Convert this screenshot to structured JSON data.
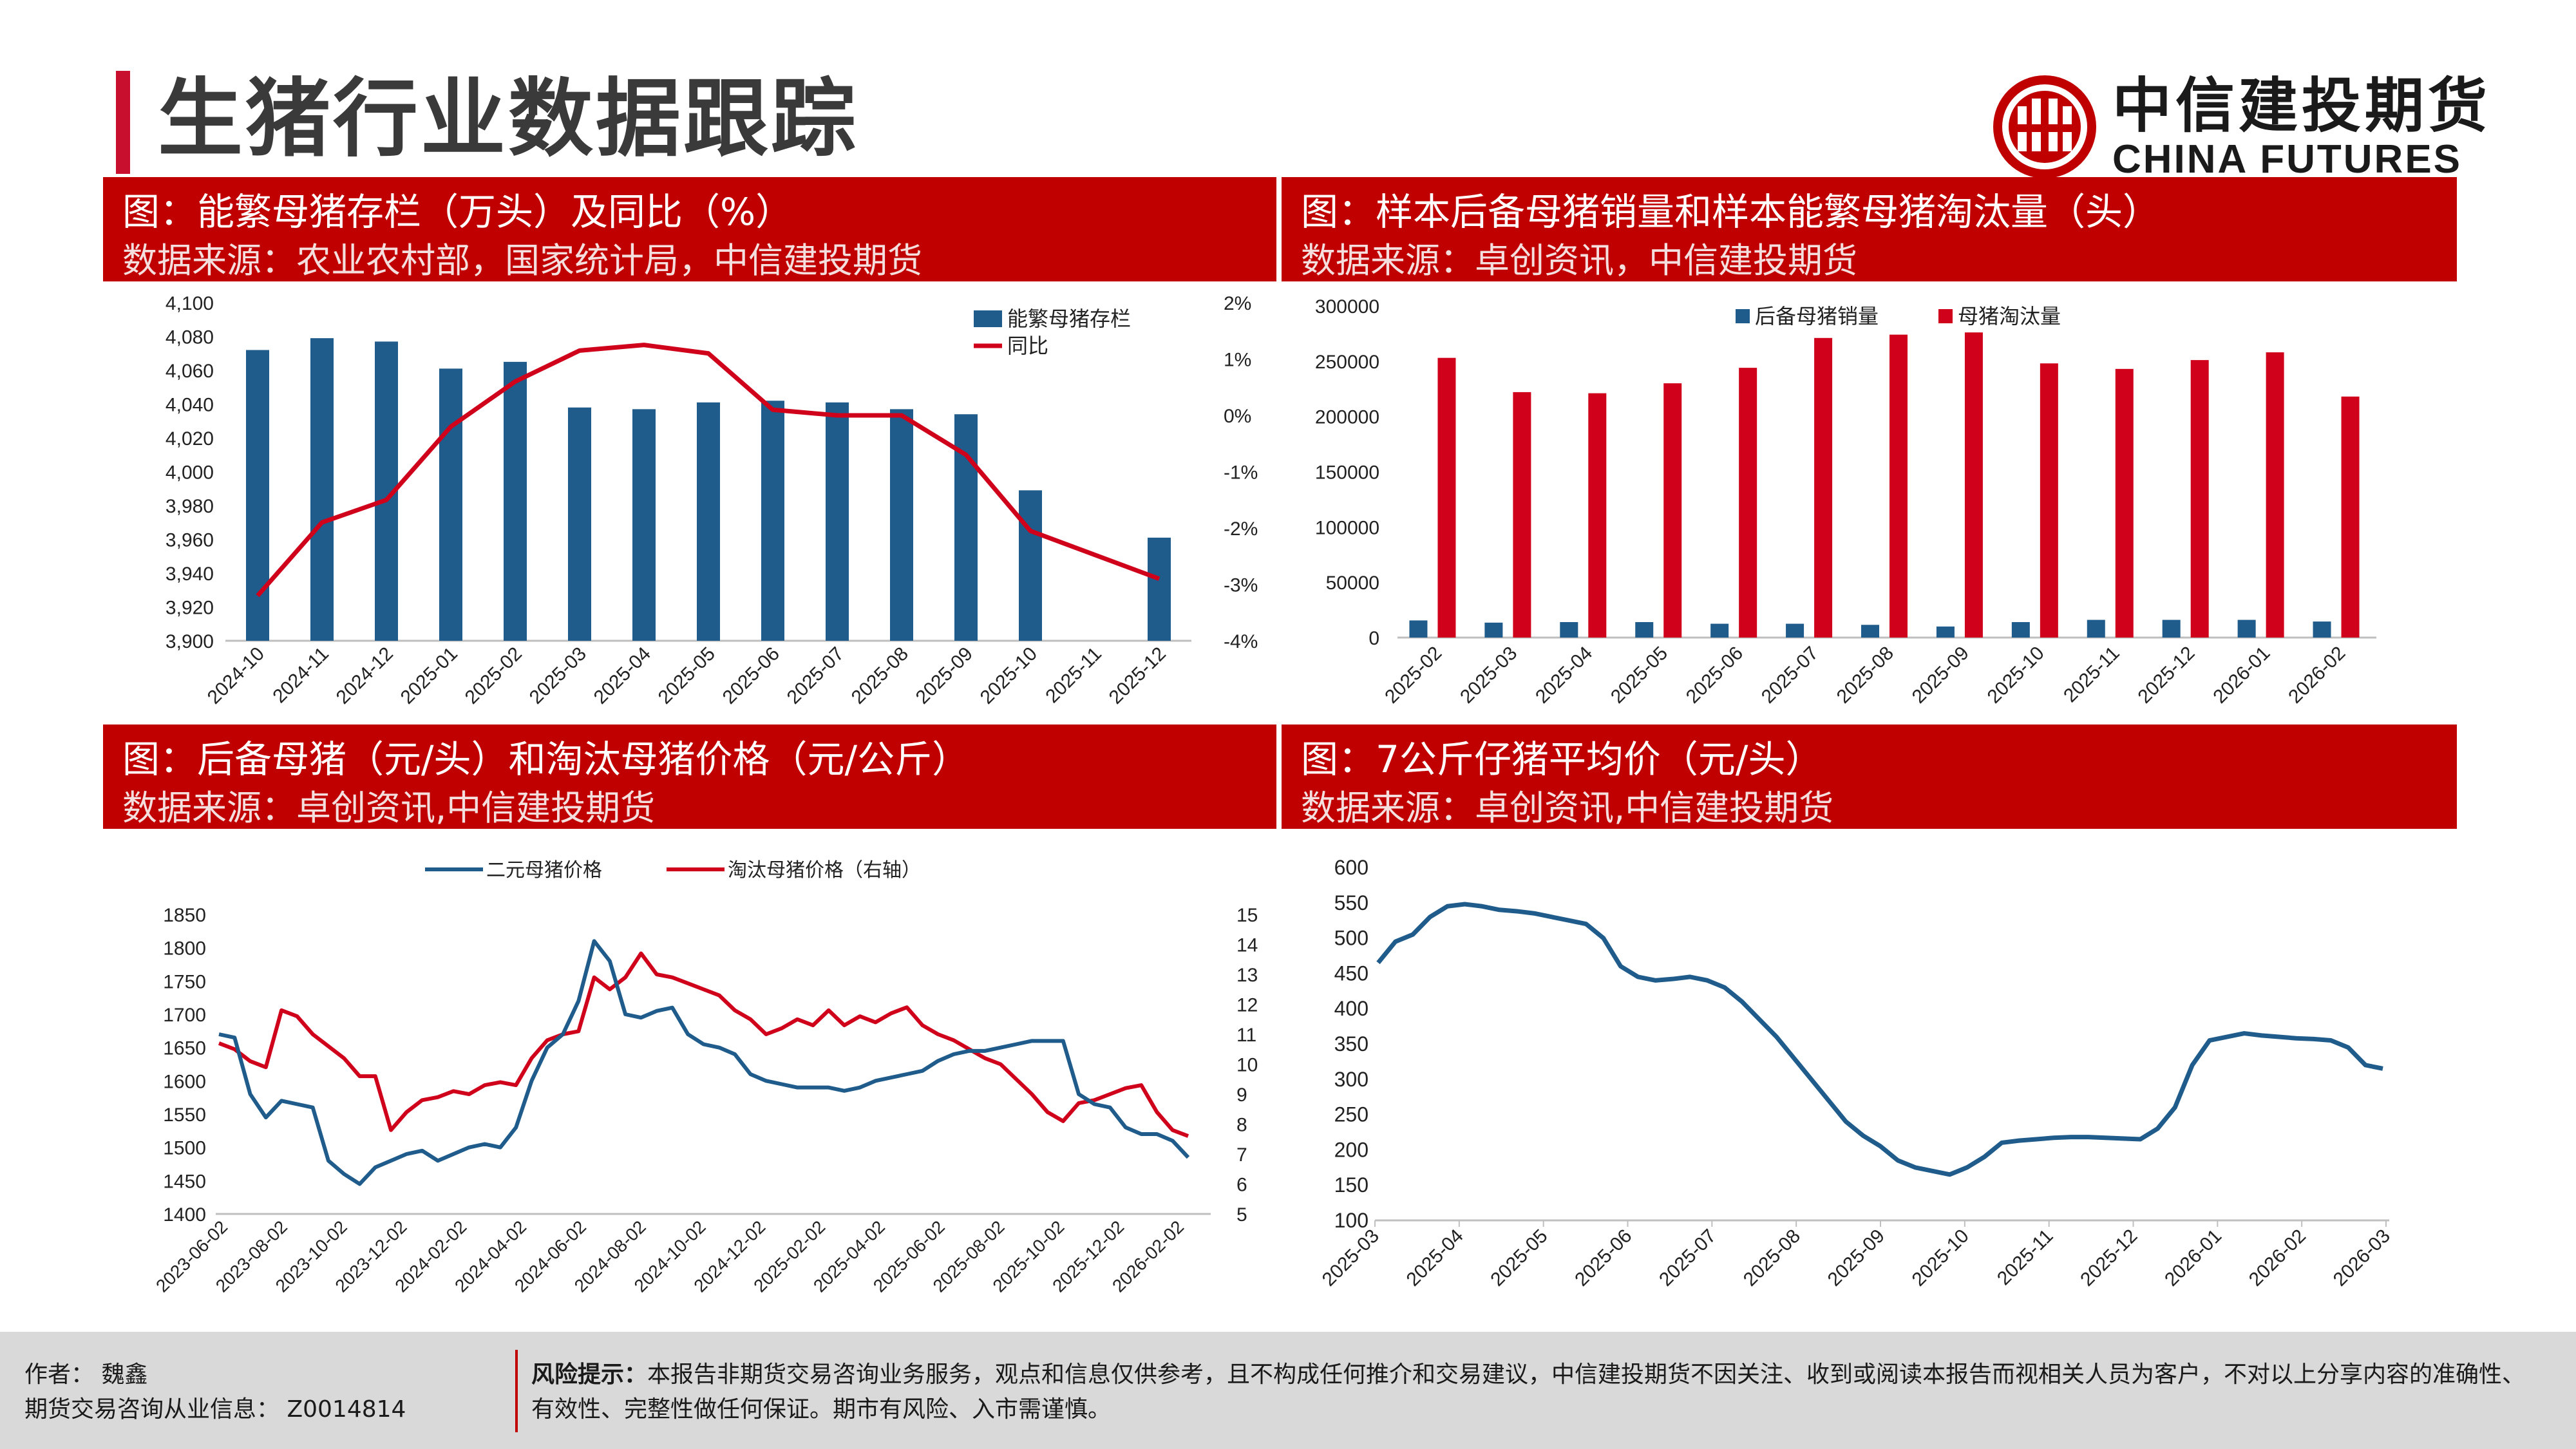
{
  "page": {
    "title": "生猪行业数据跟踪"
  },
  "logo": {
    "cn": "中信建投期货",
    "en": "CHINA FUTURES"
  },
  "colors": {
    "brand_red": "#c00000",
    "bar_blue": "#1f5c8b",
    "line_red": "#d0021b",
    "line_blue": "#1f5c8b"
  },
  "panels": [
    {
      "title": "图：能繁母猪存栏（万头）及同比（%）",
      "source": "数据来源：农业农村部，国家统计局，中信建投期货"
    },
    {
      "title": "图：样本后备母猪销量和样本能繁母猪淘汰量（头）",
      "source": "数据来源：卓创资讯，中信建投期货"
    },
    {
      "title": "图：后备母猪（元/头）和淘汰母猪价格（元/公斤）",
      "source": "数据来源：卓创资讯,中信建投期货"
    },
    {
      "title": "图：7公斤仔猪平均价（元/头）",
      "source": "数据来源：卓创资讯,中信建投期货"
    }
  ],
  "chart_data": [
    {
      "type": "bar",
      "categories": [
        "2024-10",
        "2024-11",
        "2024-12",
        "2025-01",
        "2025-02",
        "2025-03",
        "2025-04",
        "2025-05",
        "2025-06",
        "2025-07",
        "2025-08",
        "2025-09",
        "2025-10",
        "2025-11",
        "2025-12"
      ],
      "series": [
        {
          "name": "能繁母猪存栏",
          "kind": "bar",
          "axis": "left",
          "values": [
            4072,
            4079,
            4077,
            4061,
            4065,
            4038,
            4037,
            4041,
            4042,
            4041,
            4037,
            4034,
            3989,
            null,
            3961
          ]
        },
        {
          "name": "同比",
          "kind": "line",
          "axis": "right",
          "values": [
            -3.2,
            -1.9,
            -1.5,
            -0.2,
            0.6,
            1.15,
            1.25,
            1.1,
            0.1,
            0.0,
            0.0,
            -0.7,
            -2.05,
            null,
            -2.9
          ]
        }
      ],
      "ylim": [
        3900,
        4100
      ],
      "yticks": [
        "4,100",
        "4,080",
        "4,060",
        "4,040",
        "4,020",
        "4,000",
        "3,980",
        "3,960",
        "3,940",
        "3,920",
        "3,900"
      ],
      "y2lim": [
        -4,
        2
      ],
      "y2ticks": [
        "2%",
        "1%",
        "0%",
        "-1%",
        "-2%",
        "-3%",
        "-4%"
      ],
      "legend": [
        "能繁母猪存栏",
        "同比"
      ]
    },
    {
      "type": "bar",
      "categories": [
        "2025-02",
        "2025-03",
        "2025-04",
        "2025-05",
        "2025-06",
        "2025-07",
        "2025-08",
        "2025-09",
        "2025-10",
        "2025-11",
        "2025-12",
        "2026-01",
        "2026-02"
      ],
      "series": [
        {
          "name": "后备母猪销量",
          "values": [
            15500,
            13500,
            14000,
            14000,
            12500,
            12500,
            11500,
            10000,
            14000,
            16000,
            16000,
            16000,
            14500
          ]
        },
        {
          "name": "母猪淘汰量",
          "values": [
            253000,
            222000,
            221000,
            230000,
            244000,
            271000,
            274000,
            276000,
            248000,
            243000,
            251000,
            258000,
            218000
          ]
        }
      ],
      "ylim": [
        0,
        300000
      ],
      "yticks": [
        "300000",
        "250000",
        "200000",
        "150000",
        "100000",
        "50000",
        "0"
      ],
      "legend": [
        "后备母猪销量",
        "母猪淘汰量"
      ]
    },
    {
      "type": "line",
      "x_ticks": [
        "2023-06-02",
        "2023-08-02",
        "2023-10-02",
        "2023-12-02",
        "2024-02-02",
        "2024-04-02",
        "2024-06-02",
        "2024-08-02",
        "2024-10-02",
        "2024-12-02",
        "2025-02-02",
        "2025-04-02",
        "2025-06-02",
        "2025-08-02",
        "2025-10-02",
        "2025-12-02",
        "2026-02-02"
      ],
      "series": [
        {
          "name": "二元母猪价格",
          "axis": "left",
          "values": [
            1670,
            1665,
            1580,
            1545,
            1570,
            1565,
            1560,
            1480,
            1460,
            1445,
            1470,
            1480,
            1490,
            1495,
            1480,
            1490,
            1500,
            1505,
            1500,
            1530,
            1600,
            1650,
            1670,
            1720,
            1810,
            1780,
            1700,
            1695,
            1705,
            1710,
            1670,
            1655,
            1650,
            1640,
            1610,
            1600,
            1595,
            1590,
            1590,
            1590,
            1585,
            1590,
            1600,
            1605,
            1610,
            1615,
            1630,
            1640,
            1645,
            1645,
            1650,
            1655,
            1660,
            1660,
            1660,
            1580,
            1565,
            1560,
            1530,
            1520,
            1520,
            1510,
            1485
          ]
        },
        {
          "name": "淘汰母猪价格（右轴）",
          "axis": "right",
          "values": [
            10.7,
            10.5,
            10.1,
            9.9,
            11.8,
            11.6,
            11.0,
            10.6,
            10.2,
            9.6,
            9.6,
            7.8,
            8.4,
            8.8,
            8.9,
            9.1,
            9.0,
            9.3,
            9.4,
            9.3,
            10.2,
            10.8,
            11.0,
            11.1,
            12.9,
            12.5,
            12.9,
            13.7,
            13.0,
            12.9,
            12.7,
            12.5,
            12.3,
            11.8,
            11.5,
            11.0,
            11.2,
            11.5,
            11.3,
            11.8,
            11.3,
            11.6,
            11.4,
            11.7,
            11.9,
            11.3,
            11.0,
            10.8,
            10.5,
            10.2,
            10.0,
            9.5,
            9.0,
            8.4,
            8.1,
            8.7,
            8.8,
            9.0,
            9.2,
            9.3,
            8.4,
            7.8,
            7.6
          ]
        }
      ],
      "ylim": [
        1400,
        1850
      ],
      "yticks": [
        "1850",
        "1800",
        "1750",
        "1700",
        "1650",
        "1600",
        "1550",
        "1500",
        "1450",
        "1400"
      ],
      "y2lim": [
        5,
        15
      ],
      "y2ticks": [
        "15",
        "14",
        "13",
        "12",
        "11",
        "10",
        "9",
        "8",
        "7",
        "6",
        "5"
      ],
      "legend": [
        "二元母猪价格",
        "淘汰母猪价格（右轴）"
      ]
    },
    {
      "type": "line",
      "x_ticks": [
        "2025-03",
        "2025-04",
        "2025-05",
        "2025-06",
        "2025-07",
        "2025-08",
        "2025-09",
        "2025-10",
        "2025-11",
        "2025-12",
        "2026-01",
        "2026-02",
        "2026-03"
      ],
      "series": [
        {
          "name": "7公斤仔猪平均价",
          "values": [
            465,
            495,
            505,
            530,
            545,
            548,
            545,
            540,
            538,
            535,
            530,
            525,
            520,
            500,
            460,
            445,
            440,
            442,
            445,
            440,
            430,
            410,
            385,
            360,
            330,
            300,
            270,
            240,
            220,
            205,
            185,
            175,
            170,
            165,
            175,
            190,
            210,
            213,
            215,
            217,
            218,
            218,
            217,
            216,
            215,
            230,
            260,
            320,
            355,
            360,
            365,
            362,
            360,
            358,
            357,
            355,
            345,
            320,
            315
          ]
        }
      ],
      "ylim": [
        100,
        600
      ],
      "yticks": [
        "600",
        "550",
        "500",
        "450",
        "400",
        "350",
        "300",
        "250",
        "200",
        "150",
        "100"
      ]
    }
  ],
  "footer": {
    "author": "作者：  魏鑫",
    "license": "期货交易咨询从业信息：  Z0014814",
    "risk_label": "风险提示：",
    "risk_text": "本报告非期货交易咨询业务服务，观点和信息仅供参考，且不构成任何推介和交易建议，中信建投期货不因关注、收到或阅读本报告而视相关人员为客户，不对以上分享内容的准确性、有效性、完整性做任何保证。期市有风险、入市需谨慎。"
  }
}
